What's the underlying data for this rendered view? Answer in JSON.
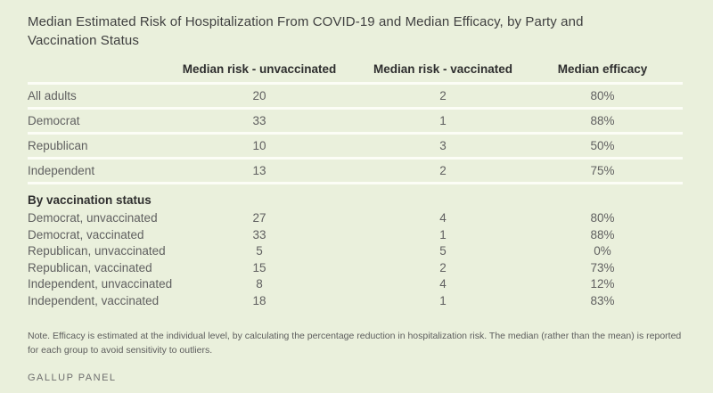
{
  "chart_data": {
    "type": "table",
    "title": "Median Estimated Risk of Hospitalization From COVID-19 and Median Efficacy, by Party and Vaccination Status",
    "columns": [
      "",
      "Median risk - unvaccinated",
      "Median risk - vaccinated",
      "Median efficacy"
    ],
    "groups": [
      {
        "header": "",
        "rows": [
          {
            "label": "All adults",
            "values": [
              "20",
              "2",
              "80%"
            ]
          },
          {
            "label": "Democrat",
            "values": [
              "33",
              "1",
              "88%"
            ]
          },
          {
            "label": "Republican",
            "values": [
              "10",
              "3",
              "50%"
            ]
          },
          {
            "label": "Independent",
            "values": [
              "13",
              "2",
              "75%"
            ]
          }
        ]
      },
      {
        "header": "By vaccination status",
        "rows": [
          {
            "label": "Democrat, unvaccinated",
            "values": [
              "27",
              "4",
              "80%"
            ]
          },
          {
            "label": "Democrat, vaccinated",
            "values": [
              "33",
              "1",
              "88%"
            ]
          },
          {
            "label": "Republican, unvaccinated",
            "values": [
              "5",
              "5",
              "0%"
            ]
          },
          {
            "label": "Republican, vaccinated",
            "values": [
              "15",
              "2",
              "73%"
            ]
          },
          {
            "label": "Independent, unvaccinated",
            "values": [
              "8",
              "4",
              "12%"
            ]
          },
          {
            "label": "Independent, vaccinated",
            "values": [
              "18",
              "1",
              "83%"
            ]
          }
        ]
      }
    ],
    "layout": {
      "grid": "off",
      "value_alignment": "center",
      "row_dividers": "first group only"
    }
  },
  "note": "Note. Efficacy is estimated at the individual level, by calculating the percentage reduction in hospitalization risk. The median (rather than the mean) is reported for each group to avoid sensitivity to outliers.",
  "source": "GALLUP PANEL",
  "colors": {
    "background": "#eaf0dc",
    "divider": "#fcfdf6",
    "title_text": "#404040",
    "header_text": "#2e2e2e",
    "body_text": "#606060",
    "note_text": "#5d5d5d",
    "source_text": "#6e6e6e"
  }
}
